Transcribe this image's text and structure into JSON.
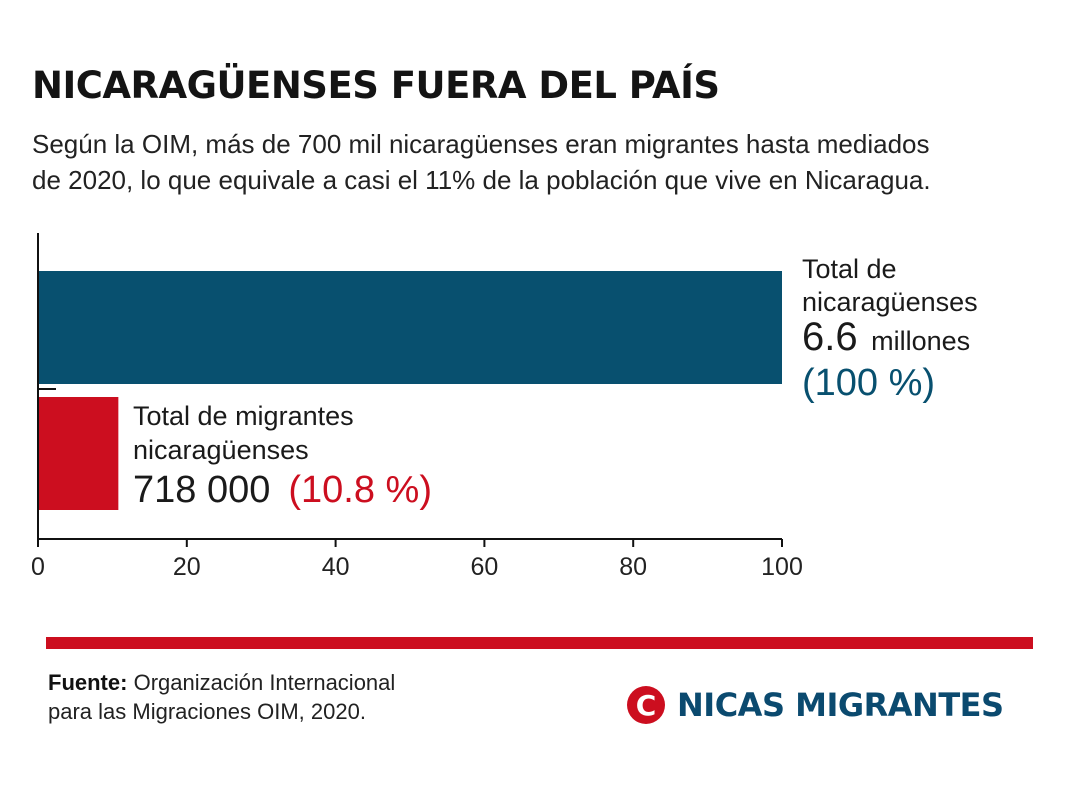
{
  "header": {
    "title": "NICARAGÜENSES FUERA DEL PAÍS",
    "subtitle_line1": "Según la OIM, más de 700 mil nicaragüenses eran migrantes hasta mediados",
    "subtitle_line2": "de 2020, lo que equivale a casi el 11% de la población que vive en Nicaragua."
  },
  "chart_data": {
    "type": "bar",
    "orientation": "horizontal",
    "xlim": [
      0,
      100
    ],
    "x_ticks": [
      "0",
      "20",
      "40",
      "60",
      "80",
      "100"
    ],
    "grid": false,
    "bars": [
      {
        "value": 100,
        "color": "#08506f",
        "label_line1": "Total de",
        "label_line2": "nicaragüenses",
        "amount": "6.6",
        "unit": "millones",
        "share": "(100 %)"
      },
      {
        "value": 10.8,
        "color": "#cc0e1f",
        "label_line1": "Total de migrantes",
        "label_line2": "nicaragüenses",
        "amount": "718 000",
        "share": "(10.8 %)"
      }
    ]
  },
  "footer": {
    "source_label": "Fuente:",
    "source_line1": "Organización Internacional",
    "source_line2": "para las Migraciones OIM, 2020.",
    "brand_mark": "C",
    "brand_name": "NICAS MIGRANTES",
    "accent_color": "#cc0e1f",
    "brand_color": "#0b4a6f"
  }
}
